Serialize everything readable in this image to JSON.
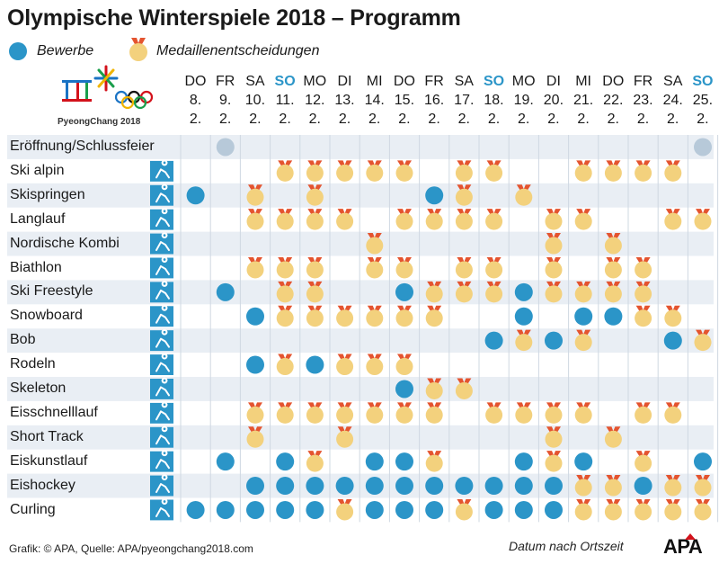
{
  "title": "Olympische Winterspiele 2018 – Programm",
  "legend": {
    "events_label": "Bewerbe",
    "medals_label": "Medaillenentscheidungen"
  },
  "logo": {
    "text": "PyeongChang 2018",
    "icon": "olympic-rings-logo"
  },
  "colors": {
    "event": "#2b95c8",
    "medal": "#f3d17d",
    "ribbon": "#e4542f",
    "ceremony": "#b7c9d9",
    "sunday": "#2b95c8",
    "row_shade": "#e9eef4"
  },
  "chart_data": {
    "type": "table",
    "title": "Olympische Winterspiele 2018 – Programm",
    "days": [
      {
        "dow": "DO",
        "date": "8.",
        "month": "2.",
        "sunday": false
      },
      {
        "dow": "FR",
        "date": "9.",
        "month": "2.",
        "sunday": false
      },
      {
        "dow": "SA",
        "date": "10.",
        "month": "2.",
        "sunday": false
      },
      {
        "dow": "SO",
        "date": "11.",
        "month": "2.",
        "sunday": true
      },
      {
        "dow": "MO",
        "date": "12.",
        "month": "2.",
        "sunday": false
      },
      {
        "dow": "DI",
        "date": "13.",
        "month": "2.",
        "sunday": false
      },
      {
        "dow": "MI",
        "date": "14.",
        "month": "2.",
        "sunday": false
      },
      {
        "dow": "DO",
        "date": "15.",
        "month": "2.",
        "sunday": false
      },
      {
        "dow": "FR",
        "date": "16.",
        "month": "2.",
        "sunday": false
      },
      {
        "dow": "SA",
        "date": "17.",
        "month": "2.",
        "sunday": false
      },
      {
        "dow": "SO",
        "date": "18.",
        "month": "2.",
        "sunday": true
      },
      {
        "dow": "MO",
        "date": "19.",
        "month": "2.",
        "sunday": false
      },
      {
        "dow": "DI",
        "date": "20.",
        "month": "2.",
        "sunday": false
      },
      {
        "dow": "MI",
        "date": "21.",
        "month": "2.",
        "sunday": false
      },
      {
        "dow": "DO",
        "date": "22.",
        "month": "2.",
        "sunday": false
      },
      {
        "dow": "FR",
        "date": "23.",
        "month": "2.",
        "sunday": false
      },
      {
        "dow": "SA",
        "date": "24.",
        "month": "2.",
        "sunday": false
      },
      {
        "dow": "SO",
        "date": "25.",
        "month": "2.",
        "sunday": true
      }
    ],
    "cell_legend": {
      "0": "none",
      "1": "Bewerbe",
      "2": "Medaillenentscheidungen",
      "3": "Eröffnung/Schlussfeier"
    },
    "sports": [
      {
        "name": "Eröffnung/Schlussfeier",
        "icon": "",
        "cells": [
          0,
          3,
          0,
          0,
          0,
          0,
          0,
          0,
          0,
          0,
          0,
          0,
          0,
          0,
          0,
          0,
          0,
          3
        ]
      },
      {
        "name": "Ski alpin",
        "icon": "ski-alpine-icon",
        "cells": [
          0,
          0,
          0,
          2,
          2,
          2,
          2,
          2,
          0,
          2,
          2,
          0,
          0,
          2,
          2,
          2,
          2,
          0
        ]
      },
      {
        "name": "Skispringen",
        "icon": "ski-jumping-icon",
        "cells": [
          1,
          0,
          2,
          0,
          2,
          0,
          0,
          0,
          1,
          2,
          0,
          2,
          0,
          0,
          0,
          0,
          0,
          0
        ]
      },
      {
        "name": "Langlauf",
        "icon": "cross-country-icon",
        "cells": [
          0,
          0,
          2,
          2,
          2,
          2,
          0,
          2,
          2,
          2,
          2,
          0,
          2,
          2,
          0,
          0,
          2,
          2
        ]
      },
      {
        "name": "Nordische Kombi",
        "icon": "nordic-combined-icon",
        "cells": [
          0,
          0,
          0,
          0,
          0,
          0,
          2,
          0,
          0,
          0,
          0,
          0,
          2,
          0,
          2,
          0,
          0,
          0
        ]
      },
      {
        "name": "Biathlon",
        "icon": "biathlon-icon",
        "cells": [
          0,
          0,
          2,
          2,
          2,
          0,
          2,
          2,
          0,
          2,
          2,
          0,
          2,
          0,
          2,
          2,
          0,
          0
        ]
      },
      {
        "name": "Ski Freestyle",
        "icon": "freestyle-icon",
        "cells": [
          0,
          1,
          0,
          2,
          2,
          0,
          0,
          1,
          2,
          2,
          2,
          1,
          2,
          2,
          2,
          2,
          0,
          0
        ]
      },
      {
        "name": "Snowboard",
        "icon": "snowboard-icon",
        "cells": [
          0,
          0,
          1,
          2,
          2,
          2,
          2,
          2,
          2,
          0,
          0,
          1,
          0,
          1,
          1,
          2,
          2,
          0
        ]
      },
      {
        "name": "Bob",
        "icon": "bobsleigh-icon",
        "cells": [
          0,
          0,
          0,
          0,
          0,
          0,
          0,
          0,
          0,
          0,
          1,
          2,
          1,
          2,
          0,
          0,
          1,
          2
        ]
      },
      {
        "name": "Rodeln",
        "icon": "luge-icon",
        "cells": [
          0,
          0,
          1,
          2,
          1,
          2,
          2,
          2,
          0,
          0,
          0,
          0,
          0,
          0,
          0,
          0,
          0,
          0
        ]
      },
      {
        "name": "Skeleton",
        "icon": "skeleton-icon",
        "cells": [
          0,
          0,
          0,
          0,
          0,
          0,
          0,
          1,
          2,
          2,
          0,
          0,
          0,
          0,
          0,
          0,
          0,
          0
        ]
      },
      {
        "name": "Eisschnelllauf",
        "icon": "speed-skating-icon",
        "cells": [
          0,
          0,
          2,
          2,
          2,
          2,
          2,
          2,
          2,
          0,
          2,
          2,
          2,
          2,
          0,
          2,
          2,
          0
        ]
      },
      {
        "name": "Short Track",
        "icon": "short-track-icon",
        "cells": [
          0,
          0,
          2,
          0,
          0,
          2,
          0,
          0,
          0,
          0,
          0,
          0,
          2,
          0,
          2,
          0,
          0,
          0
        ]
      },
      {
        "name": "Eiskunstlauf",
        "icon": "figure-skating-icon",
        "cells": [
          0,
          1,
          0,
          1,
          2,
          0,
          1,
          1,
          2,
          0,
          0,
          1,
          2,
          1,
          0,
          2,
          0,
          1
        ]
      },
      {
        "name": "Eishockey",
        "icon": "ice-hockey-icon",
        "cells": [
          0,
          0,
          1,
          1,
          1,
          1,
          1,
          1,
          1,
          1,
          1,
          1,
          1,
          2,
          2,
          1,
          2,
          2
        ]
      },
      {
        "name": "Curling",
        "icon": "curling-icon",
        "cells": [
          1,
          1,
          1,
          1,
          1,
          2,
          1,
          1,
          1,
          2,
          1,
          1,
          1,
          2,
          2,
          2,
          2,
          2
        ]
      }
    ]
  },
  "footer": {
    "source": "Grafik: © APA, Quelle: APA/pyeongchang2018.com",
    "note": "Datum nach Ortszeit",
    "brand": "APA"
  }
}
